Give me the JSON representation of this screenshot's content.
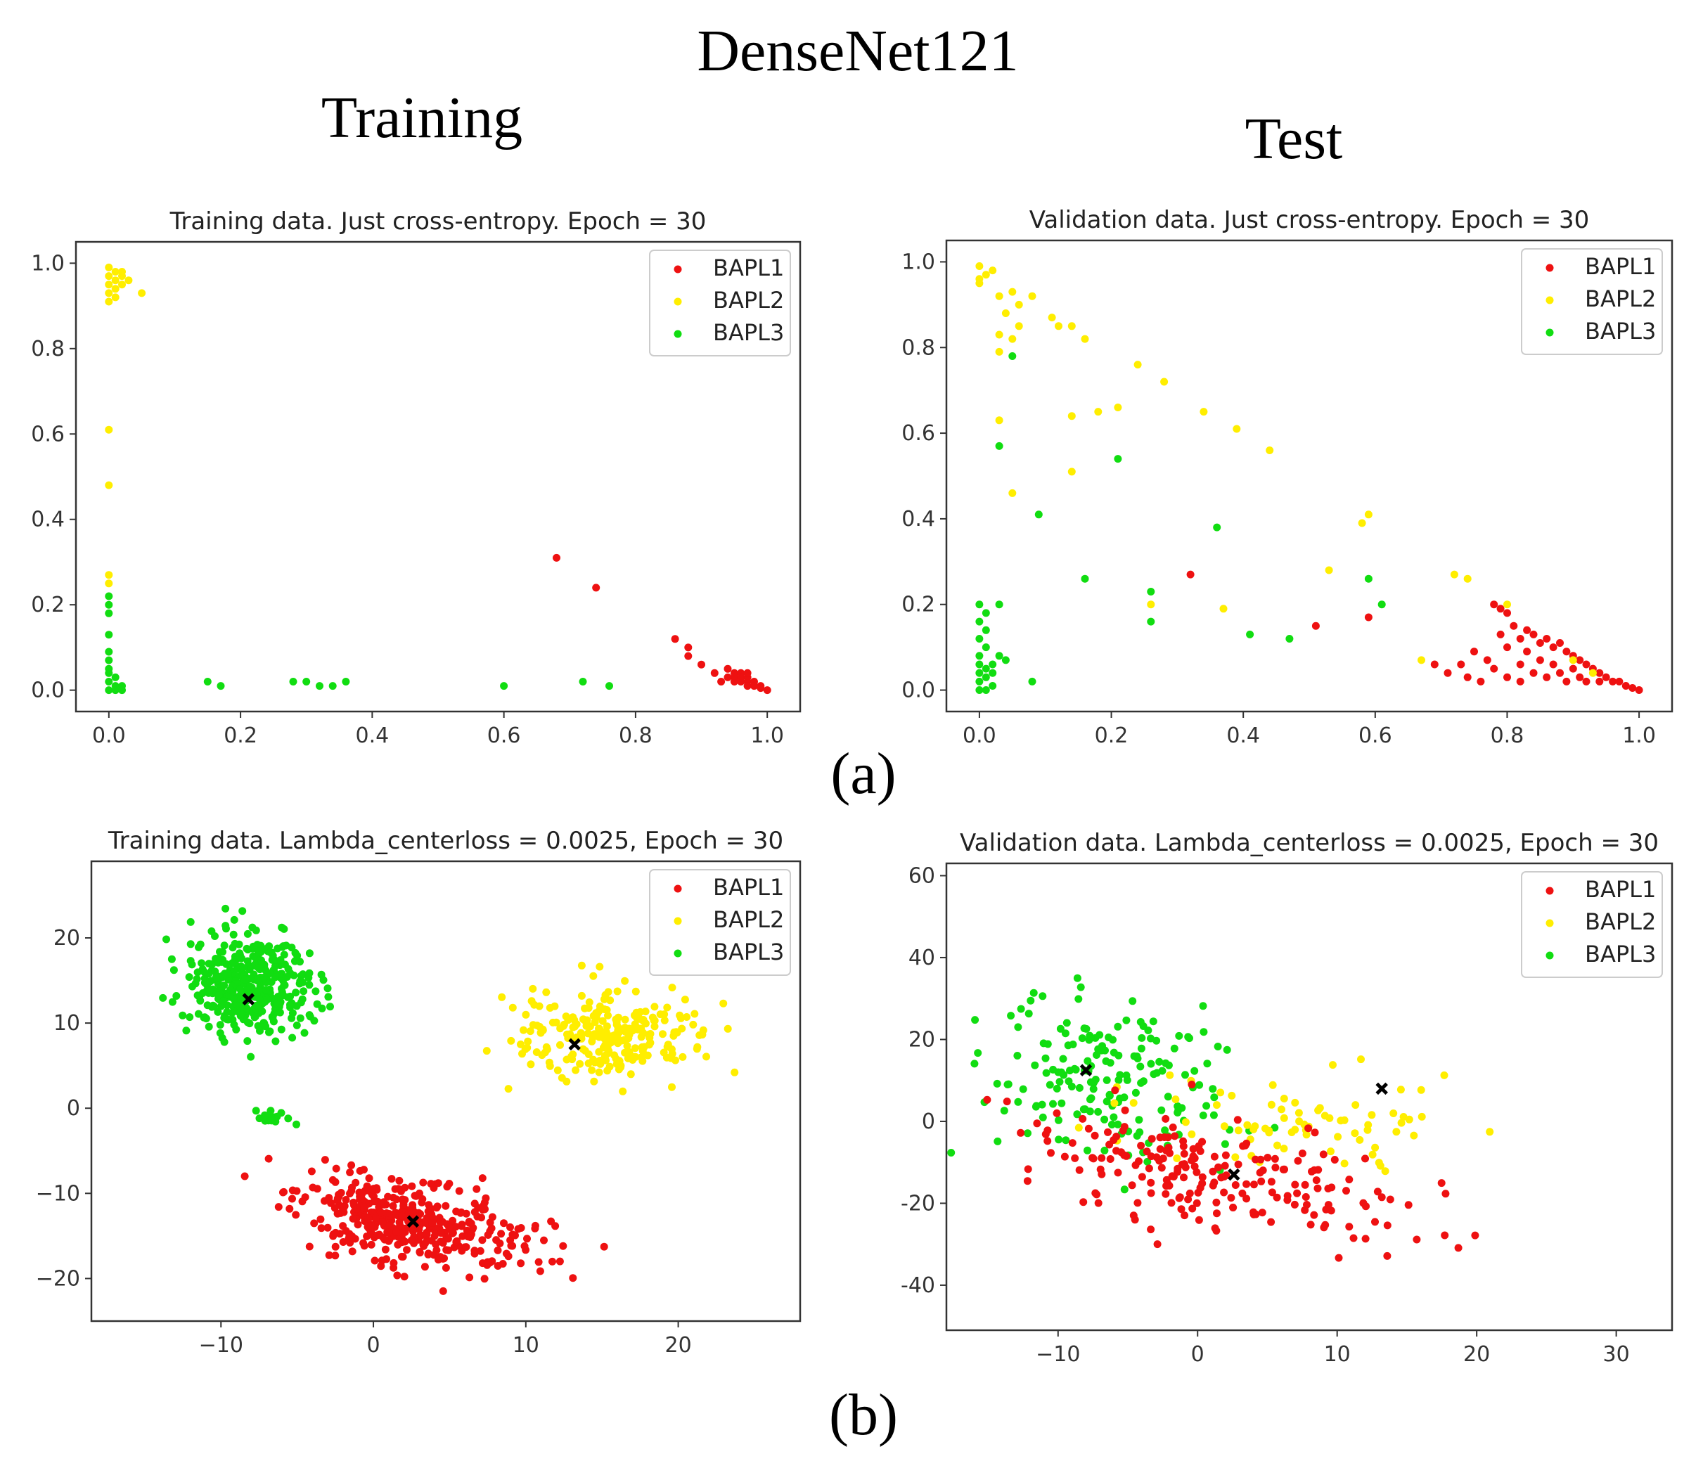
{
  "figure": {
    "title": "DenseNet121",
    "column_left": "Training",
    "column_right": "Test",
    "label_a": "(a)",
    "label_b": "(b)"
  },
  "colors": {
    "BAPL1": "#ee1111",
    "BAPL2": "#ffee00",
    "BAPL3": "#11dd11",
    "center": "#000000"
  },
  "chart_data": [
    {
      "id": "a-train",
      "type": "scatter",
      "title": "Training data. Just cross-entropy. Epoch = 30",
      "xlim": [
        -0.05,
        1.05
      ],
      "ylim": [
        -0.05,
        1.05
      ],
      "xticks": [
        0.0,
        0.2,
        0.4,
        0.6,
        0.8,
        1.0
      ],
      "xtick_labels": [
        "0.0",
        "0.2",
        "0.4",
        "0.6",
        "0.8",
        "1.0"
      ],
      "yticks": [
        0.0,
        0.2,
        0.4,
        0.6,
        0.8,
        1.0
      ],
      "ytick_labels": [
        "0.0",
        "0.2",
        "0.4",
        "0.6",
        "0.8",
        "1.0"
      ],
      "legend": [
        "BAPL1",
        "BAPL2",
        "BAPL3"
      ],
      "legend_loc": "top-right",
      "series": [
        {
          "name": "BAPL1",
          "points": [
            [
              0.68,
              0.31
            ],
            [
              0.74,
              0.24
            ],
            [
              0.86,
              0.12
            ],
            [
              0.88,
              0.1
            ],
            [
              0.88,
              0.08
            ],
            [
              0.9,
              0.06
            ],
            [
              0.92,
              0.04
            ],
            [
              0.93,
              0.02
            ],
            [
              0.94,
              0.05
            ],
            [
              0.95,
              0.04
            ],
            [
              0.95,
              0.03
            ],
            [
              0.96,
              0.04
            ],
            [
              0.96,
              0.02
            ],
            [
              0.96,
              0.03
            ],
            [
              0.97,
              0.03
            ],
            [
              0.97,
              0.02
            ],
            [
              0.97,
              0.01
            ],
            [
              0.98,
              0.02
            ],
            [
              0.98,
              0.01
            ],
            [
              0.99,
              0.01
            ],
            [
              0.99,
              0.005
            ],
            [
              1.0,
              0.0
            ],
            [
              0.94,
              0.03
            ],
            [
              0.95,
              0.02
            ],
            [
              0.97,
              0.04
            ]
          ]
        },
        {
          "name": "BAPL2",
          "points": [
            [
              0.0,
              0.99
            ],
            [
              0.01,
              0.98
            ],
            [
              0.0,
              0.97
            ],
            [
              0.01,
              0.96
            ],
            [
              0.02,
              0.97
            ],
            [
              0.0,
              0.95
            ],
            [
              0.01,
              0.94
            ],
            [
              0.02,
              0.95
            ],
            [
              0.0,
              0.93
            ],
            [
              0.01,
              0.92
            ],
            [
              0.0,
              0.91
            ],
            [
              0.03,
              0.96
            ],
            [
              0.05,
              0.93
            ],
            [
              0.02,
              0.98
            ],
            [
              0.0,
              0.61
            ],
            [
              0.0,
              0.48
            ],
            [
              0.0,
              0.27
            ],
            [
              0.0,
              0.25
            ]
          ]
        },
        {
          "name": "BAPL3",
          "points": [
            [
              0.0,
              0.22
            ],
            [
              0.0,
              0.2
            ],
            [
              0.0,
              0.18
            ],
            [
              0.0,
              0.13
            ],
            [
              0.0,
              0.09
            ],
            [
              0.0,
              0.07
            ],
            [
              0.0,
              0.05
            ],
            [
              0.0,
              0.04
            ],
            [
              0.01,
              0.03
            ],
            [
              0.0,
              0.02
            ],
            [
              0.01,
              0.01
            ],
            [
              0.0,
              0.0
            ],
            [
              0.02,
              0.01
            ],
            [
              0.01,
              0.0
            ],
            [
              0.02,
              0.0
            ],
            [
              0.15,
              0.02
            ],
            [
              0.17,
              0.01
            ],
            [
              0.28,
              0.02
            ],
            [
              0.3,
              0.02
            ],
            [
              0.32,
              0.01
            ],
            [
              0.34,
              0.01
            ],
            [
              0.36,
              0.02
            ],
            [
              0.6,
              0.01
            ],
            [
              0.72,
              0.02
            ],
            [
              0.76,
              0.01
            ]
          ]
        }
      ]
    },
    {
      "id": "a-val",
      "type": "scatter",
      "title": "Validation data. Just cross-entropy. Epoch = 30",
      "xlim": [
        -0.05,
        1.05
      ],
      "ylim": [
        -0.05,
        1.05
      ],
      "xticks": [
        0.0,
        0.2,
        0.4,
        0.6,
        0.8,
        1.0
      ],
      "xtick_labels": [
        "0.0",
        "0.2",
        "0.4",
        "0.6",
        "0.8",
        "1.0"
      ],
      "yticks": [
        0.0,
        0.2,
        0.4,
        0.6,
        0.8,
        1.0
      ],
      "ytick_labels": [
        "0.0",
        "0.2",
        "0.4",
        "0.6",
        "0.8",
        "1.0"
      ],
      "legend": [
        "BAPL1",
        "BAPL2",
        "BAPL3"
      ],
      "legend_loc": "top-right",
      "series": [
        {
          "name": "BAPL1",
          "points": [
            [
              0.32,
              0.27
            ],
            [
              0.51,
              0.15
            ],
            [
              0.59,
              0.17
            ],
            [
              0.69,
              0.06
            ],
            [
              0.71,
              0.04
            ],
            [
              0.73,
              0.06
            ],
            [
              0.74,
              0.03
            ],
            [
              0.75,
              0.09
            ],
            [
              0.77,
              0.07
            ],
            [
              0.78,
              0.05
            ],
            [
              0.78,
              0.2
            ],
            [
              0.79,
              0.13
            ],
            [
              0.8,
              0.18
            ],
            [
              0.8,
              0.1
            ],
            [
              0.81,
              0.15
            ],
            [
              0.82,
              0.12
            ],
            [
              0.82,
              0.06
            ],
            [
              0.83,
              0.09
            ],
            [
              0.84,
              0.04
            ],
            [
              0.84,
              0.13
            ],
            [
              0.85,
              0.11
            ],
            [
              0.85,
              0.07
            ],
            [
              0.86,
              0.12
            ],
            [
              0.86,
              0.03
            ],
            [
              0.87,
              0.1
            ],
            [
              0.87,
              0.06
            ],
            [
              0.88,
              0.11
            ],
            [
              0.88,
              0.04
            ],
            [
              0.89,
              0.09
            ],
            [
              0.89,
              0.02
            ],
            [
              0.9,
              0.08
            ],
            [
              0.9,
              0.05
            ],
            [
              0.91,
              0.07
            ],
            [
              0.91,
              0.03
            ],
            [
              0.92,
              0.06
            ],
            [
              0.92,
              0.02
            ],
            [
              0.93,
              0.05
            ],
            [
              0.94,
              0.04
            ],
            [
              0.94,
              0.02
            ],
            [
              0.95,
              0.03
            ],
            [
              0.96,
              0.02
            ],
            [
              0.97,
              0.02
            ],
            [
              0.98,
              0.01
            ],
            [
              0.99,
              0.005
            ],
            [
              1.0,
              0.0
            ],
            [
              0.76,
              0.02
            ],
            [
              0.8,
              0.03
            ],
            [
              0.82,
              0.02
            ],
            [
              0.79,
              0.19
            ],
            [
              0.83,
              0.14
            ]
          ]
        },
        {
          "name": "BAPL2",
          "points": [
            [
              0.0,
              0.99
            ],
            [
              0.01,
              0.97
            ],
            [
              0.0,
              0.96
            ],
            [
              0.02,
              0.98
            ],
            [
              0.03,
              0.92
            ],
            [
              0.05,
              0.93
            ],
            [
              0.06,
              0.9
            ],
            [
              0.08,
              0.92
            ],
            [
              0.04,
              0.88
            ],
            [
              0.06,
              0.85
            ],
            [
              0.03,
              0.83
            ],
            [
              0.05,
              0.82
            ],
            [
              0.11,
              0.87
            ],
            [
              0.12,
              0.85
            ],
            [
              0.14,
              0.85
            ],
            [
              0.16,
              0.82
            ],
            [
              0.03,
              0.79
            ],
            [
              0.24,
              0.76
            ],
            [
              0.28,
              0.72
            ],
            [
              0.03,
              0.63
            ],
            [
              0.14,
              0.64
            ],
            [
              0.18,
              0.65
            ],
            [
              0.21,
              0.66
            ],
            [
              0.34,
              0.65
            ],
            [
              0.39,
              0.61
            ],
            [
              0.44,
              0.56
            ],
            [
              0.14,
              0.51
            ],
            [
              0.05,
              0.46
            ],
            [
              0.59,
              0.41
            ],
            [
              0.58,
              0.39
            ],
            [
              0.53,
              0.28
            ],
            [
              0.26,
              0.2
            ],
            [
              0.37,
              0.19
            ],
            [
              0.72,
              0.27
            ],
            [
              0.74,
              0.26
            ],
            [
              0.67,
              0.07
            ],
            [
              0.8,
              0.2
            ],
            [
              0.9,
              0.07
            ],
            [
              0.93,
              0.04
            ],
            [
              0.0,
              0.95
            ]
          ]
        },
        {
          "name": "BAPL3",
          "points": [
            [
              0.0,
              0.2
            ],
            [
              0.01,
              0.18
            ],
            [
              0.0,
              0.16
            ],
            [
              0.01,
              0.14
            ],
            [
              0.0,
              0.12
            ],
            [
              0.01,
              0.1
            ],
            [
              0.0,
              0.08
            ],
            [
              0.0,
              0.06
            ],
            [
              0.01,
              0.05
            ],
            [
              0.0,
              0.04
            ],
            [
              0.01,
              0.03
            ],
            [
              0.0,
              0.02
            ],
            [
              0.02,
              0.01
            ],
            [
              0.0,
              0.0
            ],
            [
              0.01,
              0.0
            ],
            [
              0.02,
              0.06
            ],
            [
              0.03,
              0.08
            ],
            [
              0.04,
              0.07
            ],
            [
              0.03,
              0.2
            ],
            [
              0.02,
              0.04
            ],
            [
              0.05,
              0.78
            ],
            [
              0.03,
              0.57
            ],
            [
              0.09,
              0.41
            ],
            [
              0.21,
              0.54
            ],
            [
              0.36,
              0.38
            ],
            [
              0.16,
              0.26
            ],
            [
              0.26,
              0.23
            ],
            [
              0.26,
              0.16
            ],
            [
              0.41,
              0.13
            ],
            [
              0.47,
              0.12
            ],
            [
              0.59,
              0.26
            ],
            [
              0.61,
              0.2
            ],
            [
              0.08,
              0.02
            ]
          ]
        }
      ]
    },
    {
      "id": "b-train",
      "type": "scatter",
      "title": "Training data. Lambda_centerloss = 0.0025, Epoch = 30",
      "xlim": [
        -18.5,
        28
      ],
      "ylim": [
        -25,
        29
      ],
      "xticks": [
        -10,
        0,
        10,
        20
      ],
      "xtick_labels": [
        "−10",
        "0",
        "10",
        "20"
      ],
      "yticks": [
        -20,
        -10,
        0,
        10,
        20
      ],
      "ytick_labels": [
        "−20",
        "−10",
        "0",
        "10",
        "20"
      ],
      "legend": [
        "BAPL1",
        "BAPL2",
        "BAPL3"
      ],
      "legend_loc": "top-right",
      "clusters": [
        {
          "name": "BAPL1",
          "center": [
            2.5,
            -13.5
          ],
          "spread": [
            3.6,
            2.3
          ],
          "count": 420,
          "tilt": -0.28
        },
        {
          "name": "BAPL2",
          "center": [
            15.5,
            8.5
          ],
          "spread": [
            2.9,
            2.7
          ],
          "count": 260,
          "tilt": 0.0
        },
        {
          "name": "BAPL3",
          "center": [
            -8.2,
            14.5
          ],
          "spread": [
            2.1,
            3.0
          ],
          "count": 380,
          "tilt": 0.0
        },
        {
          "name": "BAPL3",
          "center": [
            -7.0,
            -1.0
          ],
          "spread": [
            0.6,
            0.6
          ],
          "count": 18,
          "tilt": 0.0
        }
      ],
      "centers": [
        [
          -8.2,
          12.8
        ],
        [
          13.2,
          7.5
        ],
        [
          2.6,
          -13.3
        ]
      ]
    },
    {
      "id": "b-val",
      "type": "scatter",
      "title": "Validation data. Lambda_centerloss = 0.0025, Epoch = 30",
      "xlim": [
        -18,
        34
      ],
      "ylim": [
        -51,
        63
      ],
      "xticks": [
        -10,
        0,
        10,
        20,
        30
      ],
      "xtick_labels": [
        "−10",
        "0",
        "10",
        "20",
        "30"
      ],
      "yticks": [
        -40,
        -20,
        0,
        20,
        40,
        60
      ],
      "ytick_labels": [
        "-40",
        "-20",
        "0",
        "20",
        "40",
        "60"
      ],
      "legend": [
        "BAPL1",
        "BAPL2",
        "BAPL3"
      ],
      "legend_loc": "top-right",
      "clusters": [
        {
          "name": "BAPL3",
          "center": [
            -6.5,
            10.0
          ],
          "spread": [
            4.5,
            10.0
          ],
          "count": 180,
          "tilt": -0.5
        },
        {
          "name": "BAPL2",
          "center": [
            8.0,
            0.0
          ],
          "spread": [
            7.0,
            7.0
          ],
          "count": 75,
          "tilt": 0.0
        },
        {
          "name": "BAPL1",
          "center": [
            2.0,
            -13.0
          ],
          "spread": [
            6.5,
            6.5
          ],
          "count": 210,
          "tilt": -0.55
        }
      ],
      "centers": [
        [
          -8.0,
          12.5
        ],
        [
          13.2,
          8.0
        ],
        [
          2.6,
          -13.0
        ]
      ]
    }
  ]
}
